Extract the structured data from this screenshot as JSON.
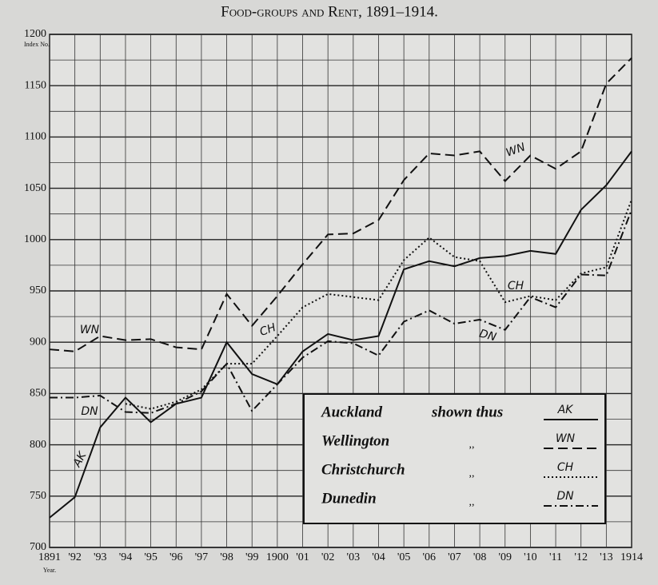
{
  "chart_data": {
    "type": "line",
    "title": "Food-groups and Rent, 1891–1914.",
    "y_label": "Index No.",
    "x_label": "Year.",
    "categories": [
      "1891",
      "'92",
      "'93",
      "'94",
      "'95",
      "'96",
      "'97",
      "'98",
      "'99",
      "1900",
      "'01",
      "'02",
      "'03",
      "'04",
      "'05",
      "'06",
      "'07",
      "'08",
      "'09",
      "'10",
      "'11",
      "'12",
      "'13",
      "1914"
    ],
    "ylim": [
      700,
      1200
    ],
    "yticks": [
      700,
      750,
      800,
      850,
      900,
      950,
      1000,
      1050,
      1100,
      1150,
      1200
    ],
    "grid": true,
    "legend_shown": "shown thus",
    "legend_ditto": ",,",
    "series": [
      {
        "name": "Auckland",
        "label": "AK",
        "color": "#111",
        "dash": "solid",
        "values": [
          729,
          749,
          817,
          846,
          822,
          840,
          846,
          900,
          869,
          859,
          891,
          908,
          902,
          906,
          971,
          979,
          974,
          982,
          984,
          989,
          986,
          1029,
          1053,
          1086
        ]
      },
      {
        "name": "Wellington",
        "label": "WN",
        "color": "#111",
        "dash": "dashed",
        "values": [
          893,
          891,
          906,
          902,
          903,
          895,
          893,
          947,
          916,
          945,
          976,
          1005,
          1006,
          1019,
          1058,
          1084,
          1082,
          1086,
          1057,
          1082,
          1069,
          1086,
          1152,
          1177
        ]
      },
      {
        "name": "Christchurch",
        "label": "CH",
        "color": "#111",
        "dash": "dotted",
        "values": [
          null,
          null,
          null,
          840,
          835,
          842,
          854,
          879,
          879,
          906,
          934,
          947,
          944,
          941,
          980,
          1002,
          983,
          979,
          939,
          945,
          941,
          967,
          973,
          1039
        ]
      },
      {
        "name": "Dunedin",
        "label": "DN",
        "color": "#111",
        "dash": "dashdot",
        "values": [
          846,
          846,
          848,
          832,
          831,
          840,
          852,
          879,
          833,
          859,
          885,
          901,
          899,
          887,
          920,
          931,
          918,
          922,
          912,
          944,
          934,
          966,
          965,
          1029
        ]
      }
    ]
  }
}
